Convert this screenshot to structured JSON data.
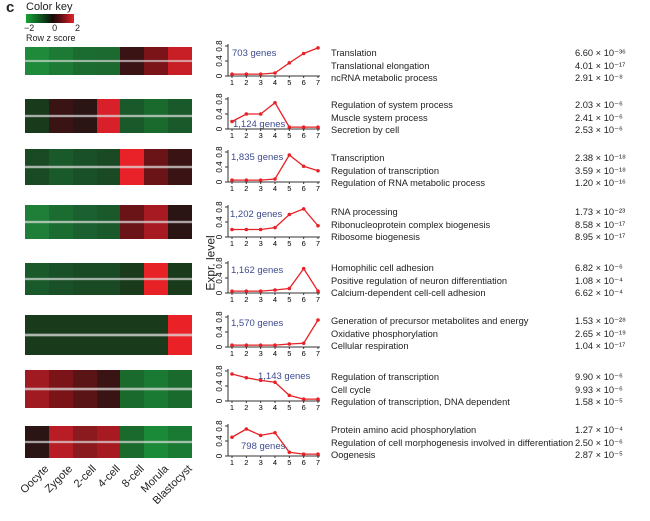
{
  "panel_letter": "c",
  "color_key": {
    "title": "Color key",
    "ticks": [
      "−2",
      "0",
      "2"
    ],
    "subtitle": "Row z score",
    "colors": {
      "low": "#17a33a",
      "mid": "#1a0d0d",
      "high": "#e62227"
    }
  },
  "ylabel": "Expr. level",
  "samples": [
    "Oocyte",
    "Zygote",
    "2-cell",
    "4-cell",
    "8-cell",
    "Morula",
    "Blastocyst"
  ],
  "chart_data": [
    {
      "type": "line",
      "genes": "703 genes",
      "x": [
        1,
        2,
        3,
        4,
        5,
        6,
        7
      ],
      "y": [
        0.05,
        0.05,
        0.05,
        0.08,
        0.35,
        0.6,
        0.75
      ],
      "ylim": [
        0,
        0.8
      ],
      "yticks": [
        "0",
        "0.4",
        "0.8"
      ],
      "heat": [
        "#1f8a3a",
        "#1d7a35",
        "#1a6c30",
        "#1c6a30",
        "#3a1414",
        "#7a1418",
        "#c81e25"
      ],
      "terms": [
        {
          "name": "Translation",
          "p": "6.60 × 10⁻³⁶"
        },
        {
          "name": "Translational elongation",
          "p": "4.01 × 10⁻¹⁷"
        },
        {
          "name": "ncRNA metabolic process",
          "p": "2.91 × 10⁻⁸"
        }
      ]
    },
    {
      "type": "line",
      "genes": "1,124 genes",
      "x": [
        1,
        2,
        3,
        4,
        5,
        6,
        7
      ],
      "y": [
        0.2,
        0.4,
        0.4,
        0.7,
        0.05,
        0.05,
        0.05
      ],
      "ylim": [
        0,
        0.8
      ],
      "yticks": [
        "0",
        "0.4",
        "0.8"
      ],
      "heat": [
        "#1a3a1c",
        "#3a1414",
        "#2a1414",
        "#d8202a",
        "#1a5a2a",
        "#1a6a2e",
        "#1a5a2a"
      ],
      "terms": [
        {
          "name": "Regulation of system process",
          "p": "2.03 × 10⁻⁶"
        },
        {
          "name": "Muscle system process",
          "p": "2.41 × 10⁻⁶"
        },
        {
          "name": "Secretion by cell",
          "p": "2.53 × 10⁻⁶"
        }
      ]
    },
    {
      "type": "line",
      "genes": "1,835 genes",
      "x": [
        1,
        2,
        3,
        4,
        5,
        6,
        7
      ],
      "y": [
        0.05,
        0.05,
        0.05,
        0.08,
        0.72,
        0.42,
        0.3
      ],
      "ylim": [
        0,
        0.8
      ],
      "yticks": [
        "0",
        "0.4",
        "0.8"
      ],
      "heat": [
        "#1a4a24",
        "#1a5a2a",
        "#1a5028",
        "#1a4a24",
        "#e82228",
        "#6a1418",
        "#3a1414"
      ],
      "terms": [
        {
          "name": "Transcription",
          "p": "2.38 × 10⁻¹⁸"
        },
        {
          "name": "Regulation of transcription",
          "p": "3.59 × 10⁻¹⁸"
        },
        {
          "name": "Regulation of RNA metabolic process",
          "p": "1.20 × 10⁻¹⁶"
        }
      ]
    },
    {
      "type": "line",
      "genes": "1,202 genes",
      "x": [
        1,
        2,
        3,
        4,
        5,
        6,
        7
      ],
      "y": [
        0.2,
        0.2,
        0.2,
        0.25,
        0.6,
        0.75,
        0.3
      ],
      "ylim": [
        0,
        0.8
      ],
      "yticks": [
        "0",
        "0.4",
        "0.8"
      ],
      "heat": [
        "#1f7e38",
        "#1a6c30",
        "#1a6030",
        "#1a5a2a",
        "#6a1418",
        "#a81a22",
        "#2a1414"
      ],
      "terms": [
        {
          "name": "RNA processing",
          "p": "1.73 × 10⁻²³"
        },
        {
          "name": "Ribonucleoprotein complex biogenesis",
          "p": "8.58 × 10⁻¹⁷"
        },
        {
          "name": "Ribosome biogenesis",
          "p": "8.95 × 10⁻¹⁷"
        }
      ]
    },
    {
      "type": "line",
      "genes": "1,162 genes",
      "x": [
        1,
        2,
        3,
        4,
        5,
        6,
        7
      ],
      "y": [
        0.05,
        0.05,
        0.05,
        0.08,
        0.12,
        0.65,
        0.05
      ],
      "ylim": [
        0,
        0.8
      ],
      "yticks": [
        "0",
        "0.4",
        "0.8"
      ],
      "heat": [
        "#1a5a2a",
        "#1a5028",
        "#1a4a24",
        "#1a4a24",
        "#1a3a1c",
        "#e62227",
        "#1a3a1c"
      ],
      "terms": [
        {
          "name": "Homophilic cell adhesion",
          "p": "6.82 × 10⁻⁶"
        },
        {
          "name": "Positive regulation of neuron differentiation",
          "p": "1.08 × 10⁻⁴"
        },
        {
          "name": "Calcium-dependent cell-cell adhesion",
          "p": "6.62 × 10⁻⁴"
        }
      ]
    },
    {
      "type": "line",
      "genes": "1,570 genes",
      "x": [
        1,
        2,
        3,
        4,
        5,
        6,
        7
      ],
      "y": [
        0.05,
        0.05,
        0.05,
        0.05,
        0.08,
        0.1,
        0.72
      ],
      "ylim": [
        0,
        0.8
      ],
      "yticks": [
        "0",
        "0.4",
        "0.8"
      ],
      "heat": [
        "#1a3a1c",
        "#1a3a1c",
        "#1a3a1c",
        "#1a3a1c",
        "#1a3a1c",
        "#1a3a1c",
        "#ea2228"
      ],
      "terms": [
        {
          "name": "Generation of precursor metabolites and energy",
          "p": "1.53 × 10⁻²⁸"
        },
        {
          "name": "Oxidative phosphorylation",
          "p": "2.65 × 10⁻¹⁹"
        },
        {
          "name": "Cellular respiration",
          "p": "1.04 × 10⁻¹⁷"
        }
      ]
    },
    {
      "type": "line",
      "genes": "1,143 genes",
      "x": [
        1,
        2,
        3,
        4,
        5,
        6,
        7
      ],
      "y": [
        0.72,
        0.62,
        0.55,
        0.5,
        0.15,
        0.05,
        0.05
      ],
      "ylim": [
        0,
        0.8
      ],
      "yticks": [
        "0",
        "0.4",
        "0.8"
      ],
      "heat": [
        "#a01a22",
        "#7a1418",
        "#5a1416",
        "#3a1414",
        "#1a6a2e",
        "#1a7a34",
        "#1a6a2e"
      ],
      "terms": [
        {
          "name": "Regulation of transcription",
          "p": "9.90 × 10⁻⁶"
        },
        {
          "name": "Cell cycle",
          "p": "9.93 × 10⁻⁶"
        },
        {
          "name": "Regulation of transcription, DNA dependent",
          "p": "1.58 × 10⁻⁵"
        }
      ]
    },
    {
      "type": "line",
      "genes": "798 genes",
      "x": [
        1,
        2,
        3,
        4,
        5,
        6,
        7
      ],
      "y": [
        0.5,
        0.72,
        0.55,
        0.62,
        0.1,
        0.05,
        0.05
      ],
      "ylim": [
        0,
        0.8
      ],
      "yticks": [
        "0",
        "0.4",
        "0.8"
      ],
      "heat": [
        "#2a1414",
        "#b81c24",
        "#8a1a1e",
        "#a81a22",
        "#1a6a2e",
        "#1a8a38",
        "#1a7a34"
      ],
      "terms": [
        {
          "name": "Protein amino acid phosphorylation",
          "p": "1.27 × 10⁻⁴"
        },
        {
          "name": "Regulation of cell morphogenesis involved in differentiation",
          "p": "2.50 × 10⁻⁶"
        },
        {
          "name": "Oogenesis",
          "p": "2.87 × 10⁻⁵"
        }
      ]
    }
  ]
}
